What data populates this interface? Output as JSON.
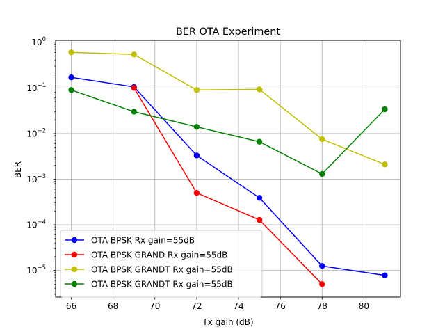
{
  "chart_data": {
    "type": "line",
    "title": "BER OTA Experiment",
    "xlabel": "Tx gain (dB)",
    "ylabel": "BER",
    "xlim": [
      65.25,
      81.75
    ],
    "ylim": [
      2.6e-06,
      1.1
    ],
    "yscale": "log",
    "grid": true,
    "legend_position": "lower-left",
    "xticks": [
      66,
      68,
      70,
      72,
      74,
      76,
      78,
      80
    ],
    "xtick_labels": [
      "66",
      "68",
      "70",
      "72",
      "74",
      "76",
      "78",
      "80"
    ],
    "yticks": [
      1e-05,
      0.0001,
      0.001,
      0.01,
      0.1,
      1
    ],
    "ytick_labels": [
      {
        "base": "10",
        "exp": "−5"
      },
      {
        "base": "10",
        "exp": "−4"
      },
      {
        "base": "10",
        "exp": "−3"
      },
      {
        "base": "10",
        "exp": "−2"
      },
      {
        "base": "10",
        "exp": "−1"
      },
      {
        "base": "10",
        "exp": "0"
      }
    ],
    "series": [
      {
        "name": "OTA BPSK Rx gain=55dB",
        "color": "#0000ff",
        "x": [
          66,
          69,
          72,
          75,
          78,
          81
        ],
        "y": [
          0.17,
          0.105,
          0.0033,
          0.00039,
          1.25e-05,
          7.8e-06
        ]
      },
      {
        "name": "OTA BPSK GRAND Rx gain=55dB",
        "color": "#ff0000",
        "x": [
          69,
          72,
          75,
          78
        ],
        "y": [
          0.1,
          0.0005,
          0.000128,
          5e-06
        ]
      },
      {
        "name": "OTA BPSK GRANDT Rx gain=55dB",
        "color": "#bfbf00",
        "x": [
          66,
          69,
          72,
          75,
          78,
          81
        ],
        "y": [
          0.6,
          0.54,
          0.09,
          0.093,
          0.0075,
          0.0021
        ]
      },
      {
        "name": "OTA BPSK GRANDT Rx gain=55dB",
        "color": "#008000",
        "x": [
          66,
          69,
          72,
          75,
          78,
          81
        ],
        "y": [
          0.09,
          0.03,
          0.014,
          0.0066,
          0.0013,
          0.034
        ]
      }
    ]
  }
}
